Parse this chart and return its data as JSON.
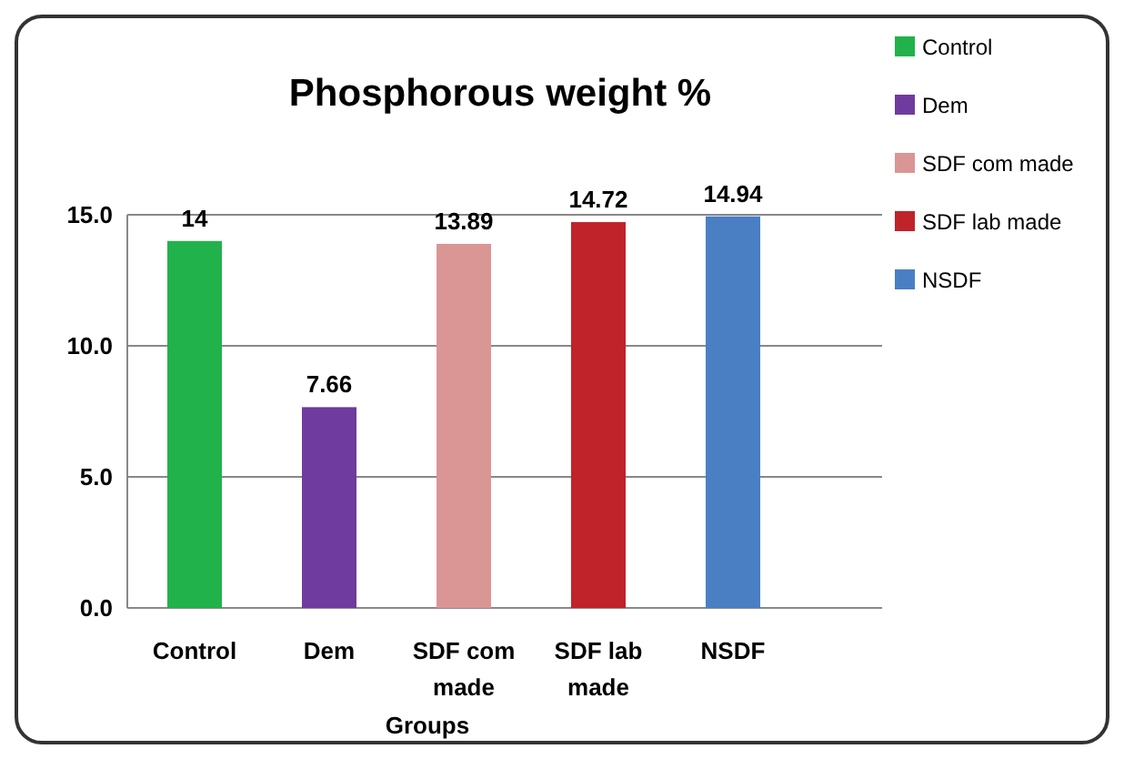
{
  "chart_data": {
    "type": "bar",
    "title": "Phosphorous weight %",
    "xlabel": "Groups",
    "categories": [
      "Control",
      "Dem",
      "SDF com made",
      "SDF lab made",
      "NSDF"
    ],
    "series": [
      {
        "name": "Control",
        "color": "#21b24b",
        "values": [
          14,
          null,
          null,
          null,
          null
        ]
      },
      {
        "name": "Dem",
        "color": "#6f3b9e",
        "values": [
          null,
          7.66,
          null,
          null,
          null
        ]
      },
      {
        "name": "SDF com made",
        "color": "#d99694",
        "values": [
          null,
          null,
          13.89,
          null,
          null
        ]
      },
      {
        "name": "SDF lab made",
        "color": "#c0232a",
        "values": [
          null,
          null,
          null,
          14.72,
          null
        ]
      },
      {
        "name": "NSDF",
        "color": "#4a7fc4",
        "values": [
          null,
          null,
          null,
          null,
          14.94
        ]
      }
    ],
    "stacked": true,
    "ylim": [
      0,
      15
    ],
    "yticks": [
      {
        "value": 0,
        "label": "0.0"
      },
      {
        "value": 5,
        "label": "5.0"
      },
      {
        "value": 10,
        "label": "10.0"
      },
      {
        "value": 15,
        "label": "15.0"
      }
    ],
    "grid": "y",
    "data_labels": true,
    "legend": "top right"
  }
}
